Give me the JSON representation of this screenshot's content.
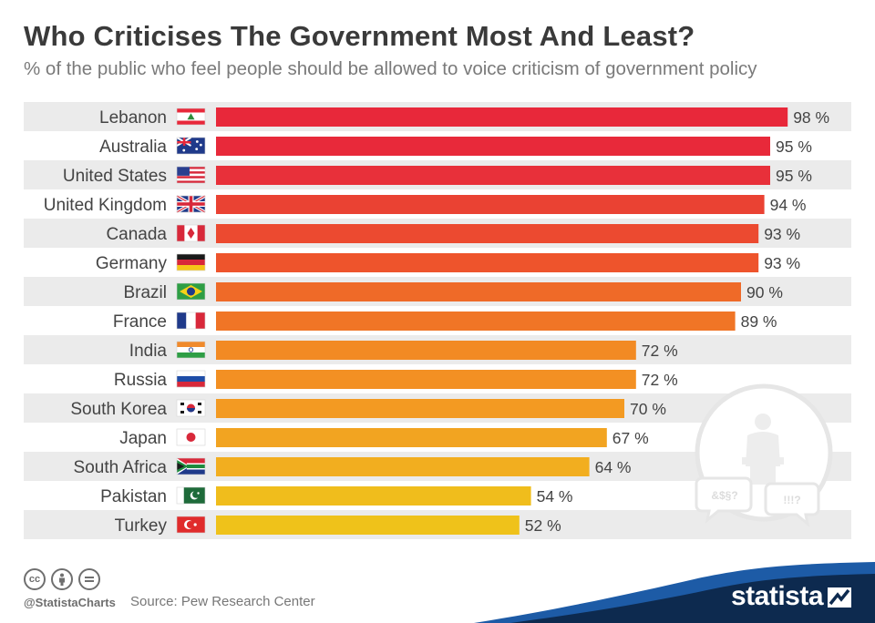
{
  "title": "Who Criticises The Government Most And Least?",
  "subtitle": "% of the public who feel people should be allowed to voice criticism of government policy",
  "chart_data": {
    "type": "bar",
    "orientation": "horizontal",
    "title": "Who Criticises The Government Most And Least?",
    "subtitle": "% of the public who feel people should be allowed to voice criticism of government policy",
    "unit": "%",
    "xlim": [
      0,
      100
    ],
    "categories": [
      "Lebanon",
      "Australia",
      "United States",
      "United Kingdom",
      "Canada",
      "Germany",
      "Brazil",
      "France",
      "India",
      "Russia",
      "South Korea",
      "Japan",
      "South Africa",
      "Pakistan",
      "Turkey"
    ],
    "values": [
      98,
      95,
      95,
      94,
      93,
      93,
      90,
      89,
      72,
      72,
      70,
      67,
      64,
      54,
      52
    ],
    "labels": [
      "98 %",
      "95 %",
      "95 %",
      "94 %",
      "93 %",
      "93 %",
      "90 %",
      "89 %",
      "72 %",
      "72 %",
      "70 %",
      "67 %",
      "64 %",
      "54 %",
      "52 %"
    ],
    "flags": [
      "lebanon-flag",
      "australia-flag",
      "united-states-flag",
      "united-kingdom-flag",
      "canada-flag",
      "germany-flag",
      "brazil-flag",
      "france-flag",
      "india-flag",
      "russia-flag",
      "south-korea-flag",
      "japan-flag",
      "south-africa-flag",
      "pakistan-flag",
      "turkey-flag"
    ],
    "bar_colors": [
      "#e8283a",
      "#e8293a",
      "#e8303a",
      "#ea4233",
      "#ec4a30",
      "#ee542c",
      "#ef6a28",
      "#f07526",
      "#f28a23",
      "#f39023",
      "#f39a22",
      "#f2a421",
      "#f2ae1f",
      "#f0bd1c",
      "#efc21a"
    ]
  },
  "illustration": {
    "speech_left": "&$§?",
    "speech_right": "!!!?"
  },
  "footer": {
    "cc_icons": [
      "cc-icon",
      "by-icon",
      "nd-icon"
    ],
    "handle": "@StatistaCharts",
    "source": "Source: Pew Research Center",
    "brand": "statista"
  },
  "colors": {
    "row_band": "#ebebeb",
    "brand_dark": "#0d2a4f",
    "brand_blue": "#1d5ba6"
  }
}
